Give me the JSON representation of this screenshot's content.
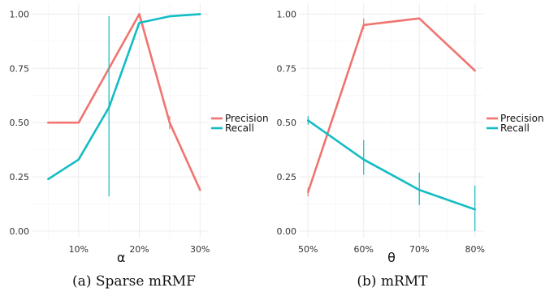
{
  "colors": {
    "precision": "#f07470",
    "recall": "#14bcc4",
    "panel_bg": "#ffffff",
    "grid": "#ececec"
  },
  "chart_data": [
    {
      "type": "line",
      "caption": "(a) Sparse mRMF",
      "xlabel": "α",
      "xlim": [
        2.4,
        31.3
      ],
      "ylim": [
        -0.03,
        1.05
      ],
      "x_ticks": [
        10,
        20,
        30
      ],
      "x_tick_labels": [
        "10%",
        "20%",
        "30%"
      ],
      "y_ticks": [
        0,
        0.25,
        0.5,
        0.75,
        1.0
      ],
      "y_tick_labels": [
        "0.00",
        "0.25",
        "0.50",
        "0.75",
        "1.00"
      ],
      "legend": "right",
      "grid": true,
      "series": [
        {
          "name": "Precision",
          "color": "#f07470",
          "x": [
            5,
            10,
            15,
            20,
            25,
            30
          ],
          "y": [
            0.5,
            0.5,
            0.75,
            1.0,
            0.5,
            0.19
          ],
          "errors": [
            [
              0.5,
              0.5
            ],
            [
              0.5,
              0.5
            ],
            [
              0.75,
              0.75
            ],
            [
              1.0,
              1.0
            ],
            [
              0.47,
              0.53
            ],
            [
              0.19,
              0.19
            ]
          ]
        },
        {
          "name": "Recall",
          "color": "#14bcc4",
          "x": [
            5,
            10,
            15,
            20,
            25,
            30
          ],
          "y": [
            0.24,
            0.33,
            0.57,
            0.96,
            0.99,
            1.0
          ],
          "errors": [
            [
              0.24,
              0.24
            ],
            [
              0.33,
              0.33
            ],
            [
              0.16,
              0.99
            ],
            [
              0.96,
              0.96
            ],
            [
              0.99,
              0.99
            ],
            [
              1.0,
              1.0
            ]
          ]
        }
      ]
    },
    {
      "type": "line",
      "caption": "(b) mRMT",
      "xlabel": "θ",
      "xlim": [
        48.5,
        81.5
      ],
      "ylim": [
        -0.03,
        1.05
      ],
      "x_ticks": [
        50,
        60,
        70,
        80
      ],
      "x_tick_labels": [
        "50%",
        "60%",
        "70%",
        "80%"
      ],
      "y_ticks": [
        0,
        0.25,
        0.5,
        0.75,
        1.0
      ],
      "y_tick_labels": [
        "0.00",
        "0.25",
        "0.50",
        "0.75",
        "1.00"
      ],
      "legend": "right",
      "grid": true,
      "series": [
        {
          "name": "Precision",
          "color": "#f07470",
          "x": [
            50,
            60,
            70,
            80
          ],
          "y": [
            0.18,
            0.95,
            0.98,
            0.74
          ],
          "errors": [
            [
              0.16,
              0.2
            ],
            [
              0.93,
              0.98
            ],
            [
              0.98,
              0.98
            ],
            [
              0.74,
              0.74
            ]
          ]
        },
        {
          "name": "Recall",
          "color": "#14bcc4",
          "x": [
            50,
            60,
            70,
            80
          ],
          "y": [
            0.51,
            0.33,
            0.19,
            0.1
          ],
          "errors": [
            [
              0.49,
              0.53
            ],
            [
              0.26,
              0.42
            ],
            [
              0.12,
              0.27
            ],
            [
              0.0,
              0.21
            ]
          ]
        }
      ]
    }
  ]
}
